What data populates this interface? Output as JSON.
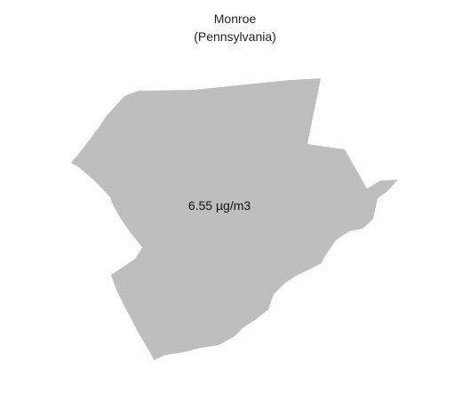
{
  "map": {
    "title_line1": "Monroe",
    "title_line2": "(Pennsylvania)",
    "region_value_label": "6.55 µg/m3",
    "fill_color": "#bebebe"
  }
}
